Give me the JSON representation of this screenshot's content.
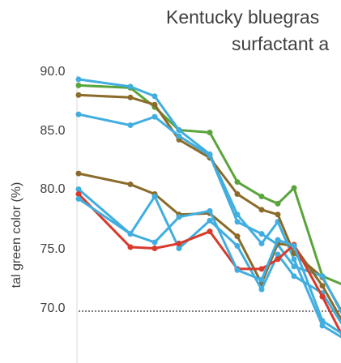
{
  "chart_data": {
    "type": "line",
    "title_lines": [
      "Kentucky bluegras",
      "surfactant a"
    ],
    "ylabel": "tal green color (%)",
    "y_ticks": [
      "90.0",
      "85.0",
      "80.0",
      "75.0",
      "70.0"
    ],
    "ylim": [
      66.5,
      91.0
    ],
    "x": [
      0,
      1,
      2,
      3,
      4,
      5,
      6,
      7,
      8,
      9,
      10
    ],
    "threshold": 70.0,
    "grid": false,
    "series": [
      {
        "color": "#5aa43c",
        "values": [
          88.7,
          88.5,
          86.9,
          85.0,
          84.8,
          80.7,
          79.5,
          78.9,
          80.2,
          72.9,
          72.0
        ]
      },
      {
        "color": "#41aedf",
        "values": [
          89.2,
          88.6,
          87.8,
          85.0,
          83.0,
          78.0,
          75.6,
          77.4,
          74.3,
          68.8,
          67.5
        ]
      },
      {
        "color": "#8b6b2a",
        "values": [
          87.9,
          87.7,
          87.1,
          84.2,
          82.7,
          79.7,
          78.4,
          78.0,
          74.8,
          72.8,
          69.0
        ]
      },
      {
        "color": "#41aedf",
        "values": [
          86.3,
          85.4,
          86.1,
          84.5,
          82.9,
          77.4,
          76.4,
          75.5,
          73.7,
          72.9,
          68.8
        ]
      },
      {
        "color": "#8b6b2a",
        "values": [
          81.4,
          80.5,
          79.7,
          78.0,
          78.1,
          76.2,
          72.3,
          75.6,
          75.4,
          72.1,
          68.3
        ]
      },
      {
        "color": "#41aedf",
        "values": [
          80.1,
          76.4,
          79.5,
          75.2,
          77.5,
          75.4,
          71.8,
          74.7,
          72.9,
          71.5,
          68.1
        ]
      },
      {
        "color": "#d93a2a",
        "values": [
          79.7,
          75.3,
          75.2,
          75.6,
          76.6,
          73.5,
          73.5,
          74.3,
          75.5,
          71.2,
          67.0
        ]
      },
      {
        "color": "#41aedf",
        "values": [
          79.3,
          76.4,
          75.7,
          77.8,
          78.3,
          73.4,
          72.6,
          75.9,
          75.4,
          69.2,
          67.8
        ]
      }
    ]
  }
}
